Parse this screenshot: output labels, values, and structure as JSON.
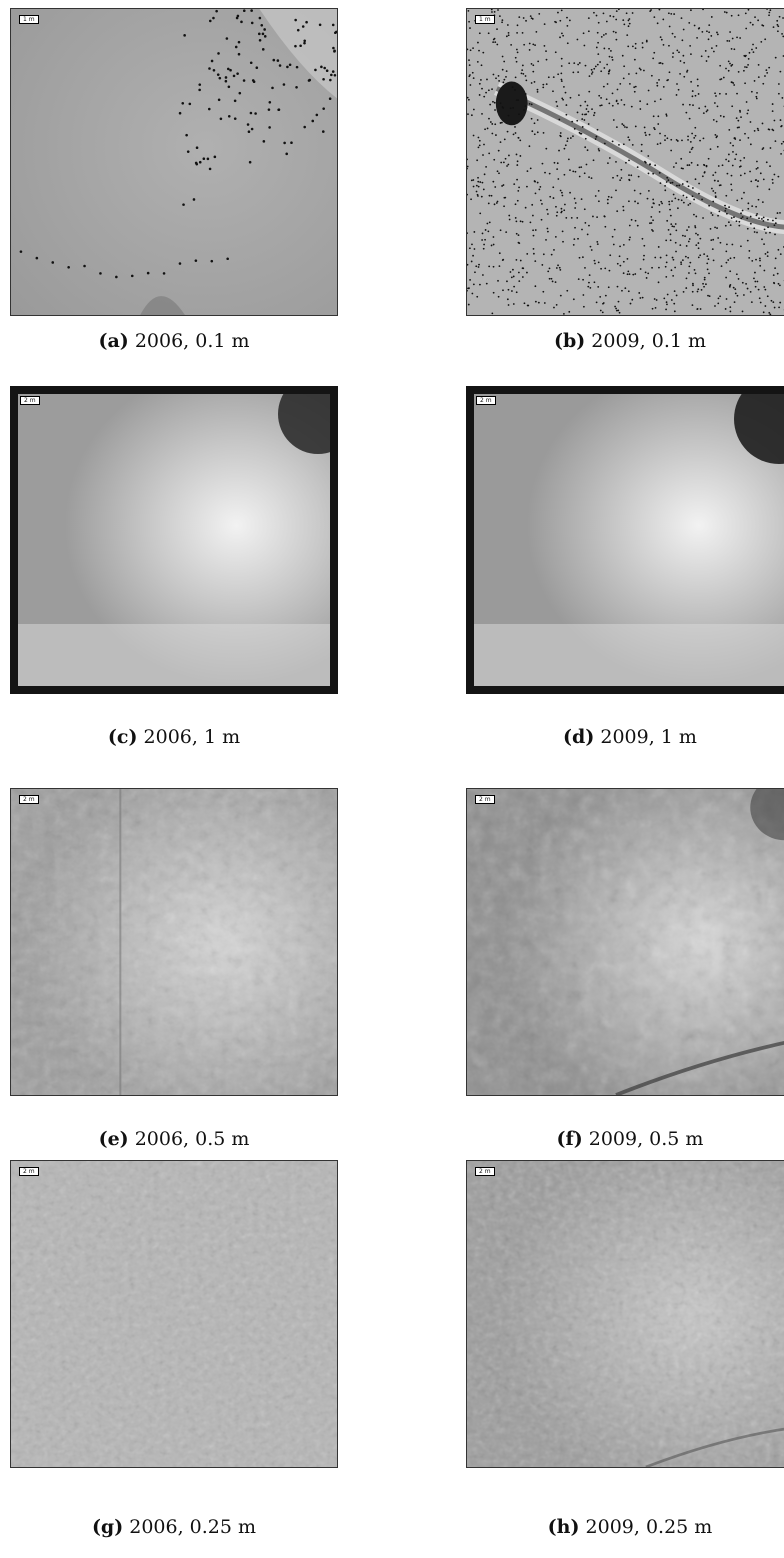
{
  "panels": [
    {
      "tag": "(a)",
      "text": "2006, 0.1 m",
      "scale": "1 m"
    },
    {
      "tag": "(b)",
      "text": "2009, 0.1 m",
      "scale": "1 m"
    },
    {
      "tag": "(c)",
      "text": "2006, 1 m",
      "scale": "2 m"
    },
    {
      "tag": "(d)",
      "text": "2009, 1 m",
      "scale": "2 m"
    },
    {
      "tag": "(e)",
      "text": "2006, 0.5 m",
      "scale": "2 m"
    },
    {
      "tag": "(f)",
      "text": "2009, 0.5 m",
      "scale": "2 m"
    },
    {
      "tag": "(g)",
      "text": "2006, 0.25 m",
      "scale": "2 m"
    },
    {
      "tag": "(h)",
      "text": "2009, 0.25 m",
      "scale": "2 m"
    }
  ],
  "colors": {
    "frame": "#141414",
    "surface": "#a8a8a8"
  }
}
